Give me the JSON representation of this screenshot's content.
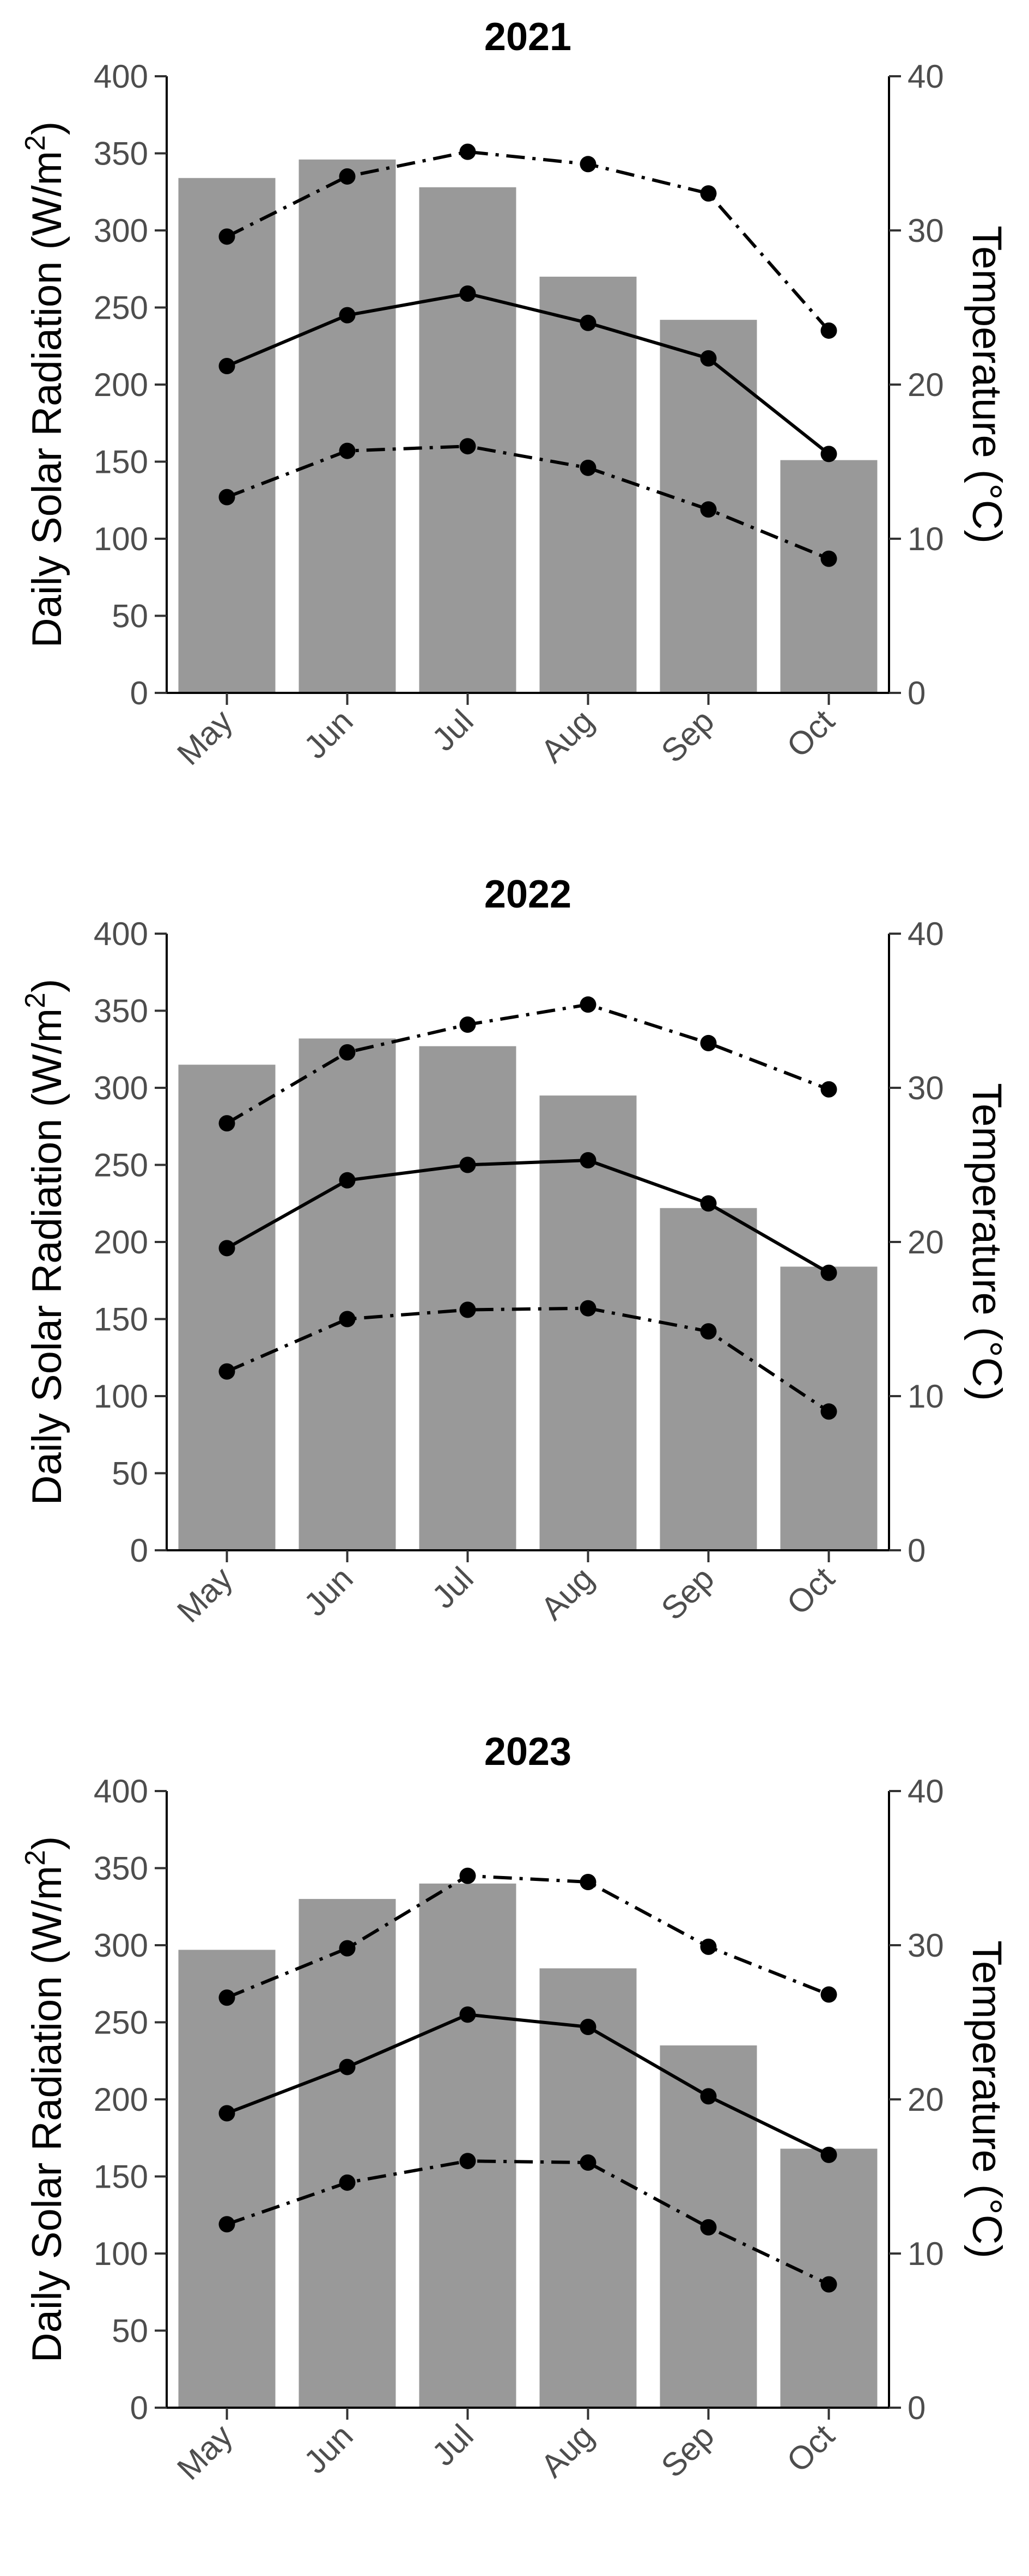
{
  "chart_data": [
    {
      "type": "bar",
      "title": "2021",
      "categories": [
        "May",
        "Jun",
        "Jul",
        "Aug",
        "Sep",
        "Oct"
      ],
      "ylabel": "Daily Solar Radiation (W/m²)",
      "ylabel_parts": {
        "base": "Daily Solar Radiation (W/m",
        "sup": "2",
        "end": ")"
      },
      "y2label": "Temperature (°C)",
      "ylim": [
        0,
        400
      ],
      "y2lim": [
        0,
        40
      ],
      "yticks": [
        0,
        50,
        100,
        150,
        200,
        250,
        300,
        350,
        400
      ],
      "y2ticks": [
        0,
        10,
        20,
        30,
        40
      ],
      "grid": false,
      "bars": {
        "axis": "left",
        "color": "#999999",
        "values": [
          334,
          346,
          328,
          270,
          242,
          151
        ]
      },
      "series": [
        {
          "axis": "right",
          "style": "dashdot",
          "values": [
            29.6,
            33.5,
            35.1,
            34.3,
            32.4,
            23.5
          ]
        },
        {
          "axis": "right",
          "style": "solid",
          "values": [
            21.2,
            24.5,
            25.9,
            24.0,
            21.7,
            15.5
          ]
        },
        {
          "axis": "right",
          "style": "dashdot",
          "values": [
            12.7,
            15.7,
            16.0,
            14.6,
            11.9,
            8.7
          ]
        }
      ]
    },
    {
      "type": "bar",
      "title": "2022",
      "categories": [
        "May",
        "Jun",
        "Jul",
        "Aug",
        "Sep",
        "Oct"
      ],
      "ylabel": "Daily Solar Radiation (W/m²)",
      "ylabel_parts": {
        "base": "Daily Solar Radiation (W/m",
        "sup": "2",
        "end": ")"
      },
      "y2label": "Temperature (°C)",
      "ylim": [
        0,
        400
      ],
      "y2lim": [
        0,
        40
      ],
      "yticks": [
        0,
        50,
        100,
        150,
        200,
        250,
        300,
        350,
        400
      ],
      "y2ticks": [
        0,
        10,
        20,
        30,
        40
      ],
      "grid": false,
      "bars": {
        "axis": "left",
        "color": "#999999",
        "values": [
          315,
          332,
          327,
          295,
          222,
          184
        ]
      },
      "series": [
        {
          "axis": "right",
          "style": "dashdot",
          "values": [
            27.7,
            32.3,
            34.1,
            35.4,
            32.9,
            29.9
          ]
        },
        {
          "axis": "right",
          "style": "solid",
          "values": [
            19.6,
            24.0,
            25.0,
            25.3,
            22.5,
            18.0
          ]
        },
        {
          "axis": "right",
          "style": "dashdot",
          "values": [
            11.6,
            15.0,
            15.6,
            15.7,
            14.2,
            9.0
          ]
        }
      ]
    },
    {
      "type": "bar",
      "title": "2023",
      "categories": [
        "May",
        "Jun",
        "Jul",
        "Aug",
        "Sep",
        "Oct"
      ],
      "ylabel": "Daily Solar Radiation (W/m²)",
      "ylabel_parts": {
        "base": "Daily Solar Radiation (W/m",
        "sup": "2",
        "end": ")"
      },
      "y2label": "Temperature (°C)",
      "ylim": [
        0,
        400
      ],
      "y2lim": [
        0,
        40
      ],
      "yticks": [
        0,
        50,
        100,
        150,
        200,
        250,
        300,
        350,
        400
      ],
      "y2ticks": [
        0,
        10,
        20,
        30,
        40
      ],
      "grid": false,
      "bars": {
        "axis": "left",
        "color": "#999999",
        "values": [
          297,
          330,
          340,
          285,
          235,
          168
        ]
      },
      "series": [
        {
          "axis": "right",
          "style": "dashdot",
          "values": [
            26.6,
            29.8,
            34.5,
            34.1,
            29.9,
            26.8
          ]
        },
        {
          "axis": "right",
          "style": "solid",
          "values": [
            19.1,
            22.1,
            25.5,
            24.7,
            20.2,
            16.4
          ]
        },
        {
          "axis": "right",
          "style": "dashdot",
          "values": [
            11.9,
            14.6,
            16.0,
            15.9,
            11.7,
            8.0
          ]
        }
      ]
    }
  ]
}
